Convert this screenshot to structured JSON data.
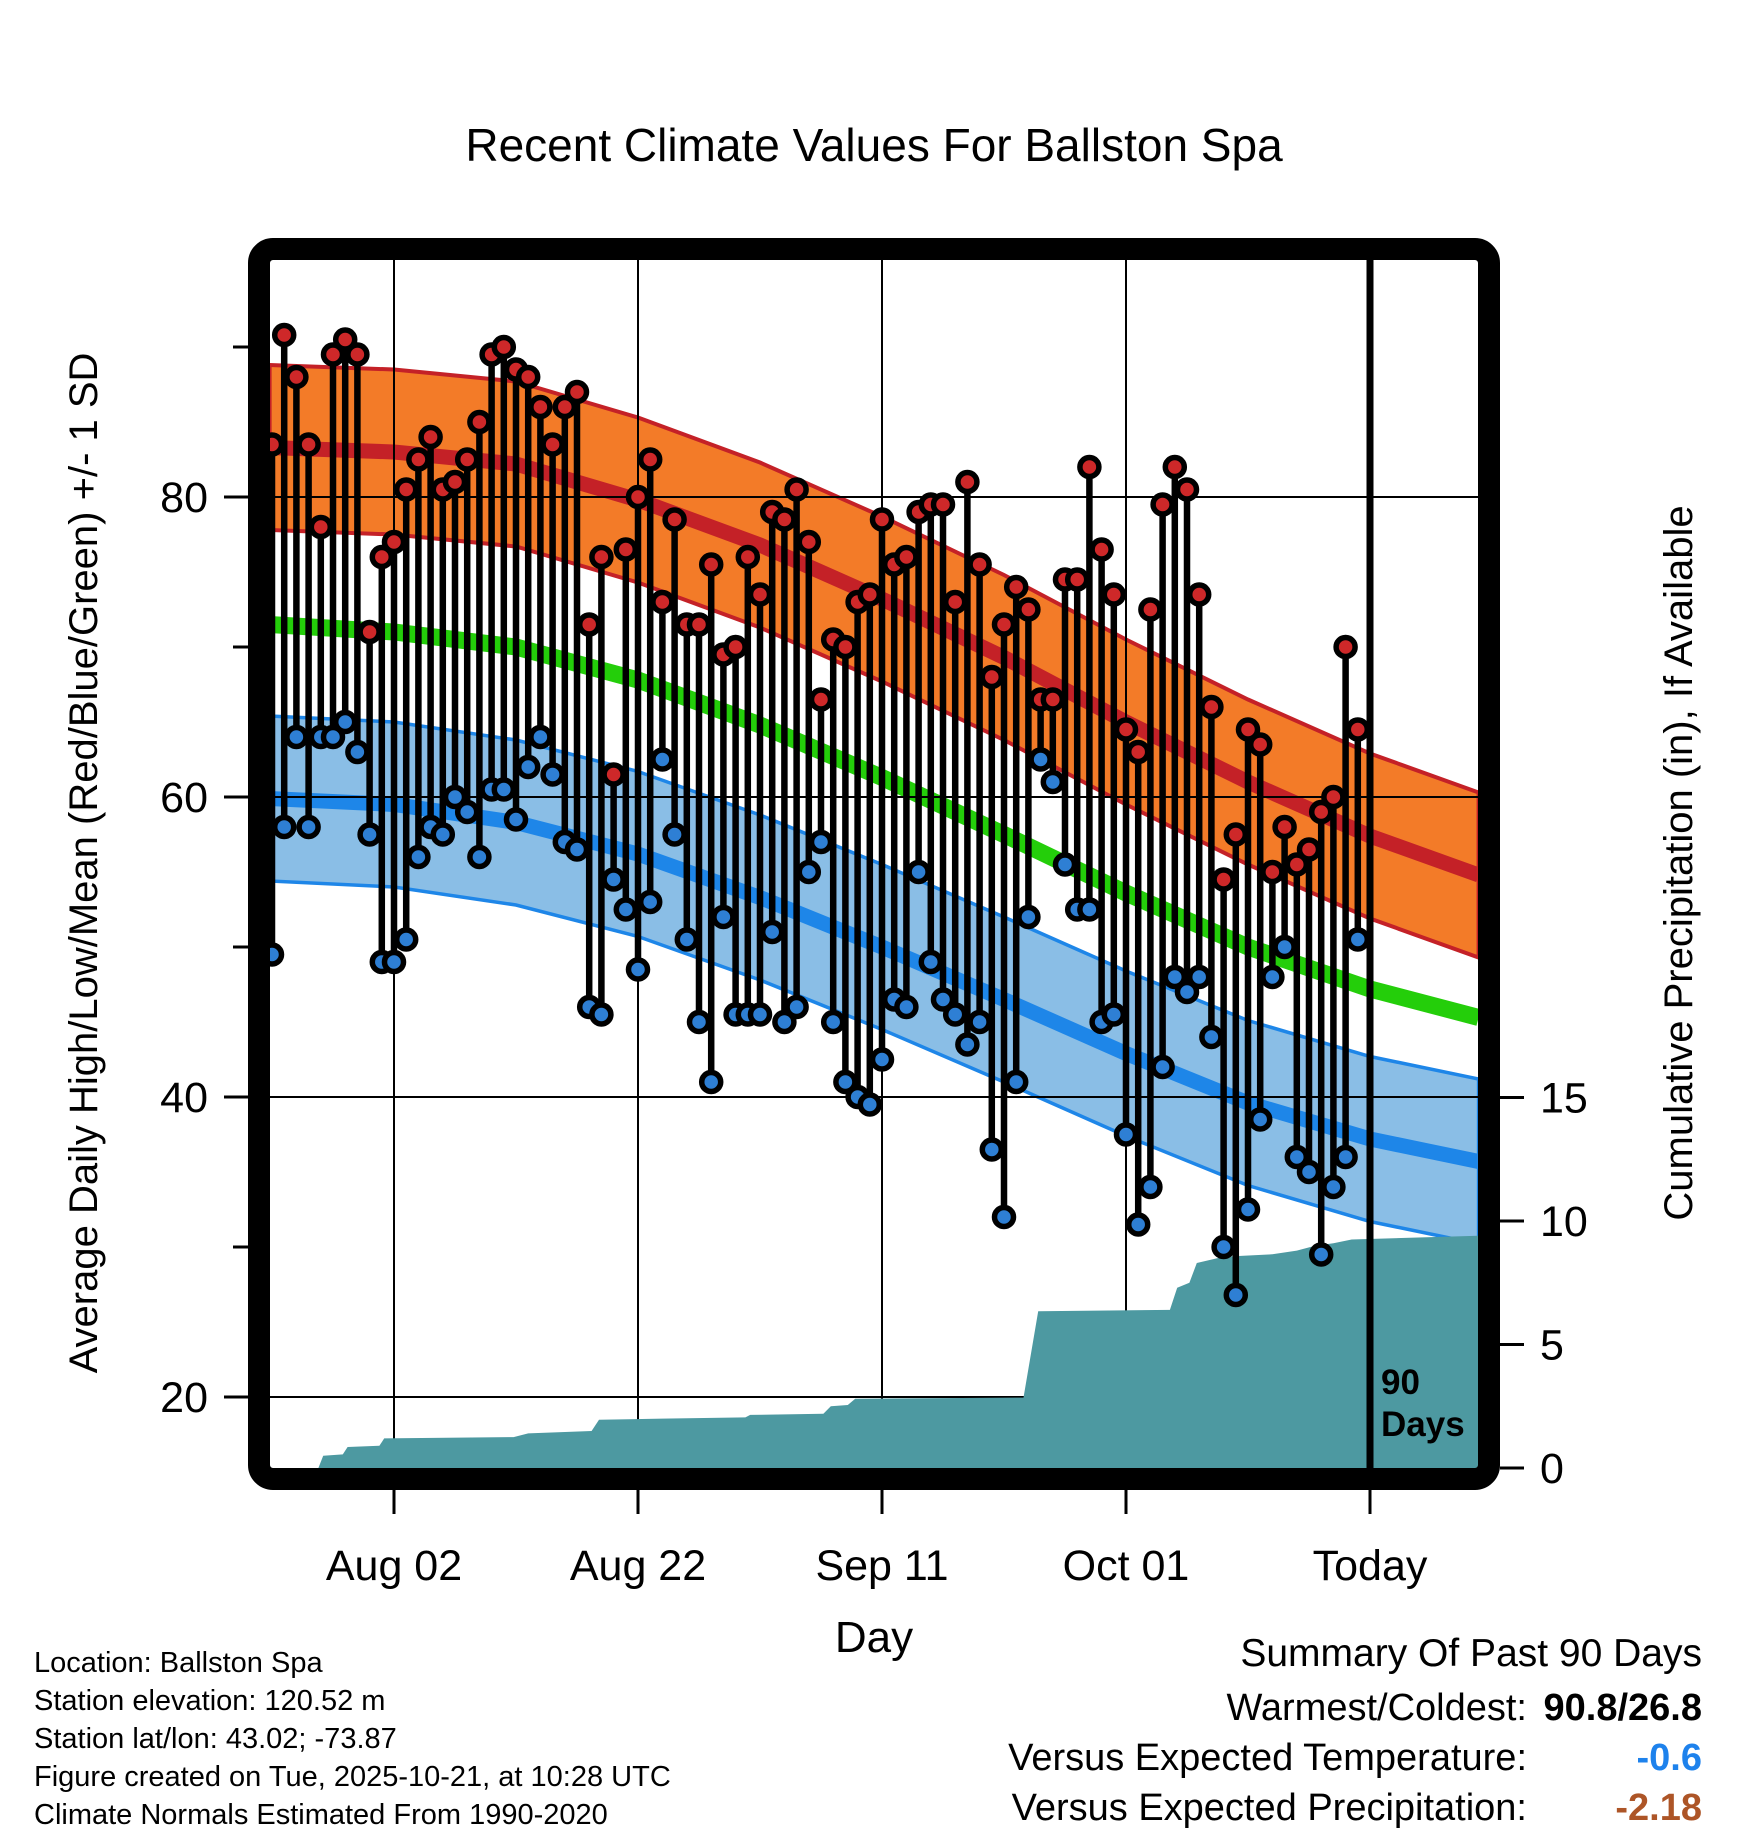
{
  "title": "Recent Climate Values For Ballston Spa",
  "axes": {
    "left": {
      "title": "Average Daily High/Low/Mean (Red/Blue/Green) +/- 1 SD",
      "major_ticks": [
        20,
        40,
        60,
        80
      ],
      "minor_ticks": [
        30,
        50,
        70,
        90
      ]
    },
    "right": {
      "title": "Cumulative Precipitation (in), If Available",
      "major_ticks": [
        0,
        5,
        10,
        15
      ]
    },
    "bottom": {
      "title": "Day",
      "ticks": [
        {
          "label": "Aug 02",
          "day": 10
        },
        {
          "label": "Aug 22",
          "day": 30
        },
        {
          "label": "Sep 11",
          "day": 50
        },
        {
          "label": "Oct 01",
          "day": 70
        },
        {
          "label": "Today",
          "day": 90
        }
      ]
    }
  },
  "today_marker": {
    "day": 90,
    "lines": [
      "90",
      "Days"
    ]
  },
  "chart_data": {
    "type": "composite",
    "subtypes": [
      "stem-highlow-daily",
      "band-normals",
      "area-cumulative-precip"
    ],
    "x_unit": "day_index_from_Jul_23",
    "x_range": [
      -0.2,
      98.9
    ],
    "temperature_axis": {
      "label_side": "left",
      "range": [
        15.3,
        95.9
      ],
      "ticks": [
        20,
        40,
        60,
        80
      ]
    },
    "precip_axis": {
      "label_side": "right",
      "range": [
        0,
        49
      ],
      "ticks": [
        0,
        5,
        10,
        15
      ]
    },
    "daily": {
      "start_date": "Jul 23",
      "end_date": "Oct 20",
      "highs": [
        83.5,
        90.8,
        88,
        83.5,
        78,
        89.5,
        90.5,
        89.5,
        71,
        76,
        77,
        80.5,
        82.5,
        84,
        80.5,
        81,
        82.5,
        85,
        89.5,
        90,
        88.5,
        88,
        86,
        83.5,
        86,
        87,
        71.5,
        76,
        61.5,
        76.5,
        80,
        82.5,
        73,
        78.5,
        71.5,
        71.5,
        75.5,
        69.5,
        70,
        76,
        73.5,
        79,
        78.5,
        80.5,
        77,
        66.5,
        70.5,
        70,
        73,
        73.5,
        78.5,
        75.5,
        76,
        79,
        79.5,
        79.5,
        73,
        81,
        75.5,
        68,
        71.5,
        74,
        72.5,
        66.5,
        66.5,
        74.5,
        74.5,
        82,
        76.5,
        73.5,
        64.5,
        63,
        72.5,
        79.5,
        82,
        80.5,
        73.5,
        66,
        54.5,
        57.5,
        64.5,
        63.5,
        55,
        58,
        55.5,
        56.5,
        59,
        60,
        70,
        64.5
      ],
      "lows": [
        49.5,
        58,
        64,
        58,
        64,
        64,
        65,
        63,
        57.5,
        49,
        49,
        50.5,
        56,
        58,
        57.5,
        60,
        59,
        56,
        60.5,
        60.5,
        58.5,
        62,
        64,
        61.5,
        57,
        56.5,
        46,
        45.5,
        54.5,
        52.5,
        48.5,
        53,
        62.5,
        57.5,
        50.5,
        45,
        41,
        52,
        45.5,
        45.5,
        45.5,
        51,
        45,
        46,
        55,
        57,
        45,
        41,
        40,
        39.5,
        42.5,
        46.5,
        46,
        55,
        49,
        46.5,
        45.5,
        43.5,
        45,
        36.5,
        32,
        41,
        52,
        62.5,
        61,
        55.5,
        52.5,
        52.5,
        45,
        45.5,
        37.5,
        31.5,
        34,
        42,
        48,
        47,
        48,
        44,
        30,
        26.8,
        32.5,
        38.5,
        48,
        50,
        36,
        35,
        29.5,
        34,
        36,
        50.5
      ]
    },
    "normals": {
      "estimated_from": "1990-2020",
      "days": [
        -0.2,
        10,
        20,
        30,
        40,
        50,
        60,
        70,
        80,
        90,
        98.9
      ],
      "high_mean": [
        83.3,
        83.0,
        82.2,
        79.8,
        76.8,
        73.2,
        69.3,
        65.0,
        61.0,
        57.4,
        54.8
      ],
      "mean": [
        71.5,
        71.0,
        70.0,
        67.8,
        64.8,
        61.3,
        57.5,
        53.6,
        50.0,
        47.2,
        45.3
      ],
      "low_mean": [
        59.9,
        59.5,
        58.3,
        56.2,
        53.3,
        50.0,
        46.5,
        42.9,
        39.6,
        37.2,
        35.7
      ],
      "sd": 5.5
    },
    "cumulative_precip_in": {
      "points": [
        [
          0,
          0
        ],
        [
          3.8,
          0
        ],
        [
          4.2,
          0.5
        ],
        [
          5.8,
          0.55
        ],
        [
          6.2,
          0.85
        ],
        [
          8.8,
          0.9
        ],
        [
          9.2,
          1.2
        ],
        [
          19.8,
          1.25
        ],
        [
          21,
          1.4
        ],
        [
          26.2,
          1.5
        ],
        [
          26.8,
          1.95
        ],
        [
          32,
          2.0
        ],
        [
          38.8,
          2.05
        ],
        [
          39.2,
          2.15
        ],
        [
          45.2,
          2.2
        ],
        [
          45.8,
          2.5
        ],
        [
          47.2,
          2.55
        ],
        [
          47.8,
          2.8
        ],
        [
          61.6,
          2.85
        ],
        [
          62.8,
          6.35
        ],
        [
          73.6,
          6.4
        ],
        [
          74.2,
          7.3
        ],
        [
          75.2,
          7.5
        ],
        [
          75.8,
          8.3
        ],
        [
          78,
          8.55
        ],
        [
          82,
          8.65
        ],
        [
          84,
          8.8
        ],
        [
          85.5,
          9.0
        ],
        [
          87,
          9.1
        ],
        [
          88.5,
          9.25
        ],
        [
          98.9,
          9.4
        ]
      ]
    },
    "today_day": 90
  },
  "colors": {
    "high_band": "#F37B28",
    "high_line": "#C42127",
    "mean_line": "#24CE0A",
    "low_band": "#8ABEE6",
    "low_line": "#1E86E8",
    "high_dot": "#CE2829",
    "low_dot": "#2E7FD4",
    "precip_fill": "#4D99A1",
    "grid": "#000000",
    "summary_temp_value": "#1E82EC",
    "summary_precip_value": "#AD5527"
  },
  "footer_left": {
    "lines": [
      "Location: Ballston Spa",
      "Station elevation: 120.52 m",
      "Station lat/lon: 43.02; -73.87",
      "Figure created on Tue, 2025-10-21, at 10:28 UTC",
      "Climate Normals Estimated From 1990-2020"
    ]
  },
  "summary": {
    "title": "Summary Of Past 90 Days",
    "rows": [
      {
        "label": "Warmest/Coldest:",
        "value": "90.8/26.8",
        "style": "black"
      },
      {
        "label": "Versus Expected Temperature:",
        "value": "-0.6",
        "style": "temp"
      },
      {
        "label": "Versus Expected Precipitation:",
        "value": "-2.18",
        "style": "precip"
      }
    ]
  }
}
